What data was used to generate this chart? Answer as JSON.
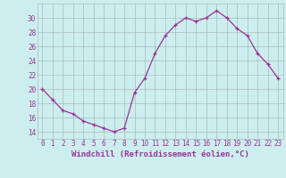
{
  "x": [
    0,
    1,
    2,
    3,
    4,
    5,
    6,
    7,
    8,
    9,
    10,
    11,
    12,
    13,
    14,
    15,
    16,
    17,
    18,
    19,
    20,
    21,
    22,
    23
  ],
  "y": [
    20,
    18.5,
    17,
    16.5,
    15.5,
    15,
    14.5,
    14,
    14.5,
    19.5,
    21.5,
    25,
    27.5,
    29,
    30,
    29.5,
    30,
    31,
    30,
    28.5,
    27.5,
    25,
    23.5,
    21.5
  ],
  "line_color": "#993399",
  "marker": "+",
  "markersize": 3,
  "linewidth": 0.9,
  "bg_color": "#cceeee",
  "grid_color": "#aabbbb",
  "xlabel": "Windchill (Refroidissement éolien,°C)",
  "xlabel_color": "#993399",
  "ylabel_ticks": [
    14,
    16,
    18,
    20,
    22,
    24,
    26,
    28,
    30
  ],
  "ylim": [
    13.0,
    32.0
  ],
  "xlim": [
    -0.5,
    23.5
  ],
  "tick_color": "#993399",
  "tick_fontsize": 5.5,
  "xlabel_fontsize": 6.5
}
